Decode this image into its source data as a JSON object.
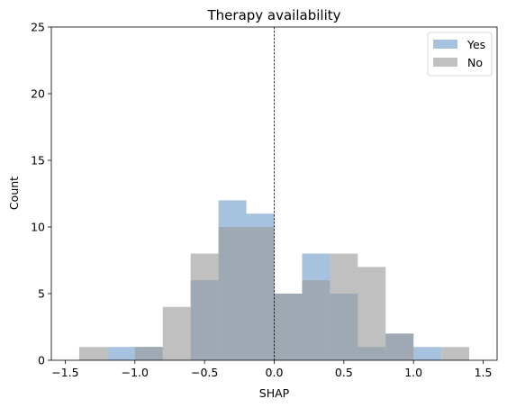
{
  "chart_data": {
    "type": "histogram",
    "title": "Therapy availability",
    "xlabel": "SHAP",
    "ylabel": "Count",
    "xlim": [
      -1.6,
      1.6
    ],
    "ylim": [
      0,
      25
    ],
    "xticks": [
      -1.5,
      -1.0,
      -0.5,
      0.0,
      0.5,
      1.0,
      1.5
    ],
    "xtick_labels": [
      "−1.5",
      "−1.0",
      "−0.5",
      "0.0",
      "0.5",
      "1.0",
      "1.5"
    ],
    "yticks": [
      0,
      5,
      10,
      15,
      20,
      25
    ],
    "ytick_labels": [
      "0",
      "5",
      "10",
      "15",
      "20",
      "25"
    ],
    "bin_edges": [
      -1.4,
      -1.2,
      -1.0,
      -0.8,
      -0.6,
      -0.4,
      -0.2,
      0.0,
      0.2,
      0.4,
      0.6,
      0.8,
      1.0,
      1.2,
      1.4
    ],
    "series": [
      {
        "name": "Yes",
        "color": "#6a9ac8",
        "opacity": 0.6,
        "counts": [
          0,
          1,
          1,
          0,
          6,
          12,
          11,
          5,
          8,
          5,
          1,
          2,
          1,
          0
        ]
      },
      {
        "name": "No",
        "color": "#999999",
        "opacity": 0.62,
        "counts": [
          1,
          0,
          1,
          4,
          8,
          10,
          10,
          5,
          6,
          8,
          7,
          2,
          0,
          1
        ]
      }
    ],
    "vline": {
      "x": 0.0,
      "style": "dashed",
      "color": "#000000"
    },
    "legend": {
      "position": "top-right"
    },
    "grid": false
  }
}
